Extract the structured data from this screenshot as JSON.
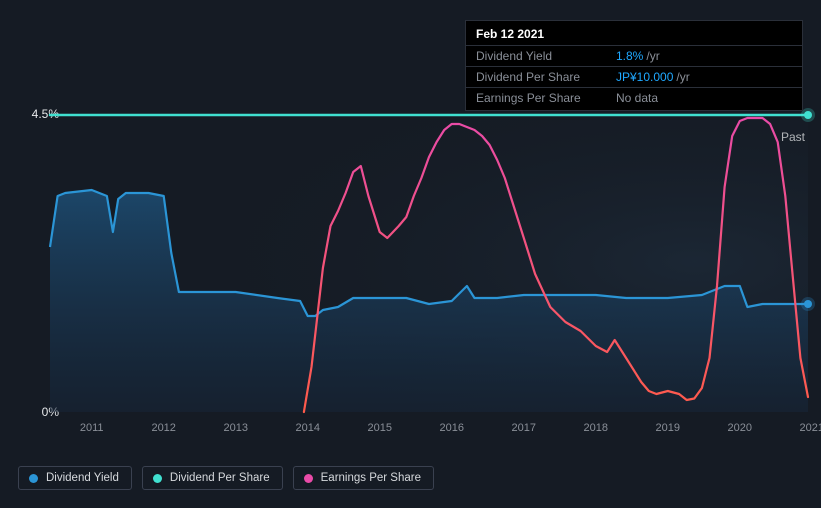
{
  "chart": {
    "type": "line-area",
    "background_color": "#151b24",
    "plot_bg_right_glow": "#1c2836",
    "ylim_percent": [
      0,
      4.5
    ],
    "y_ticks": [
      "4.5%",
      "0%"
    ],
    "x_labels": [
      "2011",
      "2012",
      "2013",
      "2014",
      "2015",
      "2016",
      "2017",
      "2018",
      "2019",
      "2020",
      "2021"
    ],
    "x_positions_pct": [
      5.5,
      15.0,
      24.5,
      34.0,
      43.5,
      53.0,
      62.5,
      72.0,
      81.5,
      91.0,
      100.5
    ],
    "past_label": "Past",
    "grid_color": "#2a303a",
    "series": {
      "dividend_yield": {
        "color": "#2b95d6",
        "fill_from": "#1d4e75",
        "fill_to": "#16263a",
        "stroke_width": 2.2,
        "points_pct": [
          [
            0,
            55
          ],
          [
            1,
            72
          ],
          [
            2,
            73
          ],
          [
            5.5,
            74
          ],
          [
            7.5,
            72
          ],
          [
            8.3,
            60
          ],
          [
            9.0,
            71
          ],
          [
            10,
            73
          ],
          [
            13,
            73
          ],
          [
            15,
            72
          ],
          [
            16,
            53
          ],
          [
            17,
            40
          ],
          [
            20,
            40
          ],
          [
            24.5,
            40
          ],
          [
            30,
            38
          ],
          [
            33,
            37
          ],
          [
            34,
            32
          ],
          [
            35,
            32
          ],
          [
            36,
            34
          ],
          [
            38,
            35
          ],
          [
            40,
            38
          ],
          [
            43.5,
            38
          ],
          [
            47,
            38
          ],
          [
            50,
            36
          ],
          [
            53,
            37
          ],
          [
            55,
            42
          ],
          [
            56,
            38
          ],
          [
            59,
            38
          ],
          [
            62.5,
            39
          ],
          [
            66,
            39
          ],
          [
            70,
            39
          ],
          [
            72,
            39
          ],
          [
            76,
            38
          ],
          [
            80,
            38
          ],
          [
            81.5,
            38
          ],
          [
            86,
            39
          ],
          [
            89,
            42
          ],
          [
            91,
            42
          ],
          [
            92,
            35
          ],
          [
            94,
            36
          ],
          [
            96,
            36
          ],
          [
            98,
            36
          ],
          [
            100,
            36
          ]
        ],
        "marker_end": {
          "x_pct": 100,
          "y_pct": 36
        }
      },
      "dividend_per_share": {
        "color": "#40e0d0",
        "stroke_width": 2.5,
        "points_pct": [
          [
            0,
            99
          ],
          [
            100,
            99
          ]
        ],
        "marker_end": {
          "x_pct": 100,
          "y_pct": 99
        }
      },
      "earnings_per_share": {
        "gradient_from": "#ff5b4a",
        "gradient_to": "#e94ba8",
        "stroke_width": 2.2,
        "points_pct": [
          [
            33.5,
            0
          ],
          [
            34.5,
            15
          ],
          [
            36,
            48
          ],
          [
            37,
            62
          ],
          [
            38,
            67
          ],
          [
            39,
            73
          ],
          [
            40,
            80
          ],
          [
            41,
            82
          ],
          [
            42,
            72
          ],
          [
            43.5,
            60
          ],
          [
            44.5,
            58
          ],
          [
            46,
            62
          ],
          [
            47,
            65
          ],
          [
            48,
            72
          ],
          [
            49,
            78
          ],
          [
            50,
            85
          ],
          [
            51,
            90
          ],
          [
            52,
            94
          ],
          [
            53,
            96
          ],
          [
            54,
            96
          ],
          [
            55,
            95
          ],
          [
            56,
            94
          ],
          [
            57,
            92
          ],
          [
            58,
            89
          ],
          [
            59,
            84
          ],
          [
            60,
            78
          ],
          [
            61,
            70
          ],
          [
            62.5,
            58
          ],
          [
            64,
            46
          ],
          [
            66,
            35
          ],
          [
            68,
            30
          ],
          [
            70,
            27
          ],
          [
            72,
            22
          ],
          [
            73.5,
            20
          ],
          [
            74.5,
            24
          ],
          [
            76,
            18
          ],
          [
            78,
            10
          ],
          [
            79,
            7
          ],
          [
            80,
            6
          ],
          [
            81.5,
            7
          ],
          [
            83,
            6
          ],
          [
            84,
            4
          ],
          [
            85,
            4.5
          ],
          [
            86,
            8
          ],
          [
            87,
            18
          ],
          [
            88,
            42
          ],
          [
            89,
            75
          ],
          [
            90,
            92
          ],
          [
            91,
            97
          ],
          [
            92,
            98
          ],
          [
            93,
            98
          ],
          [
            94,
            98
          ],
          [
            95,
            96
          ],
          [
            96,
            90
          ],
          [
            97,
            72
          ],
          [
            98,
            45
          ],
          [
            99,
            18
          ],
          [
            100,
            5
          ]
        ]
      }
    }
  },
  "tooltip": {
    "date": "Feb 12 2021",
    "rows": [
      {
        "label": "Dividend Yield",
        "value": "1.8%",
        "unit": "/yr"
      },
      {
        "label": "Dividend Per Share",
        "value": "JP¥10.000",
        "unit": "/yr"
      },
      {
        "label": "Earnings Per Share",
        "nodata": "No data"
      }
    ]
  },
  "legend": [
    {
      "label": "Dividend Yield",
      "color": "#2b95d6"
    },
    {
      "label": "Dividend Per Share",
      "color": "#40e0d0"
    },
    {
      "label": "Earnings Per Share",
      "color": "#e94ba8"
    }
  ]
}
